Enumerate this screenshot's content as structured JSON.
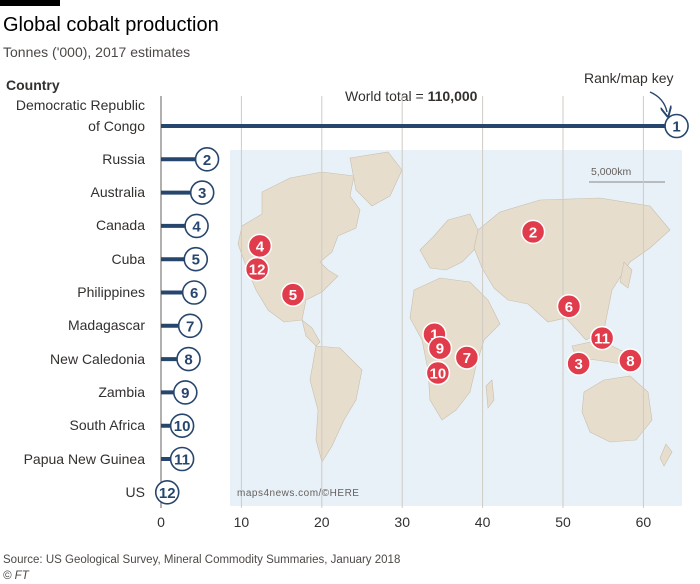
{
  "header": {
    "title": "Global cobalt production",
    "subtitle": "Tonnes ('000), 2017 estimates",
    "country_header": "Country",
    "rank_key": "Rank/map key",
    "world_total_label": "World total = ",
    "world_total_value": "110,000"
  },
  "chart_data": {
    "type": "bar",
    "orientation": "horizontal",
    "categories": [
      "Democratic Republic of Congo",
      "Russia",
      "Australia",
      "Canada",
      "Cuba",
      "Philippines",
      "Madagascar",
      "New Caledonia",
      "Zambia",
      "South Africa",
      "Papua New Guinea",
      "US"
    ],
    "labels": [
      [
        "Democratic Republic",
        "of Congo"
      ],
      [
        "Russia"
      ],
      [
        "Australia"
      ],
      [
        "Canada"
      ],
      [
        "Cuba"
      ],
      [
        "Philippines"
      ],
      [
        "Madagascar"
      ],
      [
        "New Caledonia"
      ],
      [
        "Zambia"
      ],
      [
        "South Africa"
      ],
      [
        "Papua New Guinea"
      ],
      [
        "US"
      ]
    ],
    "values": [
      64,
      5.6,
      5,
      4.3,
      4.2,
      4,
      3.5,
      3.3,
      2.9,
      2.5,
      2.5,
      0.65
    ],
    "ranks": [
      "1",
      "2",
      "3",
      "4",
      "5",
      "6",
      "7",
      "8",
      "9",
      "10",
      "11",
      "12"
    ],
    "xlim": [
      0,
      65
    ],
    "xticks": [
      0,
      10,
      20,
      30,
      40,
      50,
      60
    ],
    "grid": true,
    "colors": {
      "bar": "#27466e",
      "marker_fill": "#ffffff",
      "map_marker": "#e03c4b",
      "map_land": "#e6ddcc",
      "map_water": "#e8f1f8",
      "grid": "#cfcac3"
    }
  },
  "map": {
    "scale_label": "5,000km",
    "credit": "maps4news.com/©HERE",
    "markers": [
      {
        "rank": "1",
        "country": "Democratic Republic of Congo",
        "lon": 23.5,
        "lat": -4
      },
      {
        "rank": "2",
        "country": "Russia",
        "lon": 95,
        "lat": 62
      },
      {
        "rank": "3",
        "country": "Australia",
        "lon": 128,
        "lat": -23
      },
      {
        "rank": "4",
        "country": "Canada",
        "lon": -103,
        "lat": 53
      },
      {
        "rank": "5",
        "country": "Cuba",
        "lon": -79,
        "lat": 21.5
      },
      {
        "rank": "6",
        "country": "Philippines",
        "lon": 121,
        "lat": 14
      },
      {
        "rank": "7",
        "country": "Madagascar",
        "lon": 47,
        "lat": -19
      },
      {
        "rank": "8",
        "country": "New Caledonia",
        "lon": 165.5,
        "lat": -21
      },
      {
        "rank": "9",
        "country": "Zambia",
        "lon": 27.5,
        "lat": -13
      },
      {
        "rank": "10",
        "country": "South Africa",
        "lon": 26,
        "lat": -29
      },
      {
        "rank": "11",
        "country": "Papua New Guinea",
        "lon": 145,
        "lat": -6.5
      },
      {
        "rank": "12",
        "country": "US",
        "lon": -105,
        "lat": 38
      }
    ]
  },
  "footer": {
    "source": "Source: US Geological Survey, Mineral Commodity Summaries, January 2018",
    "copyright": "© FT"
  }
}
